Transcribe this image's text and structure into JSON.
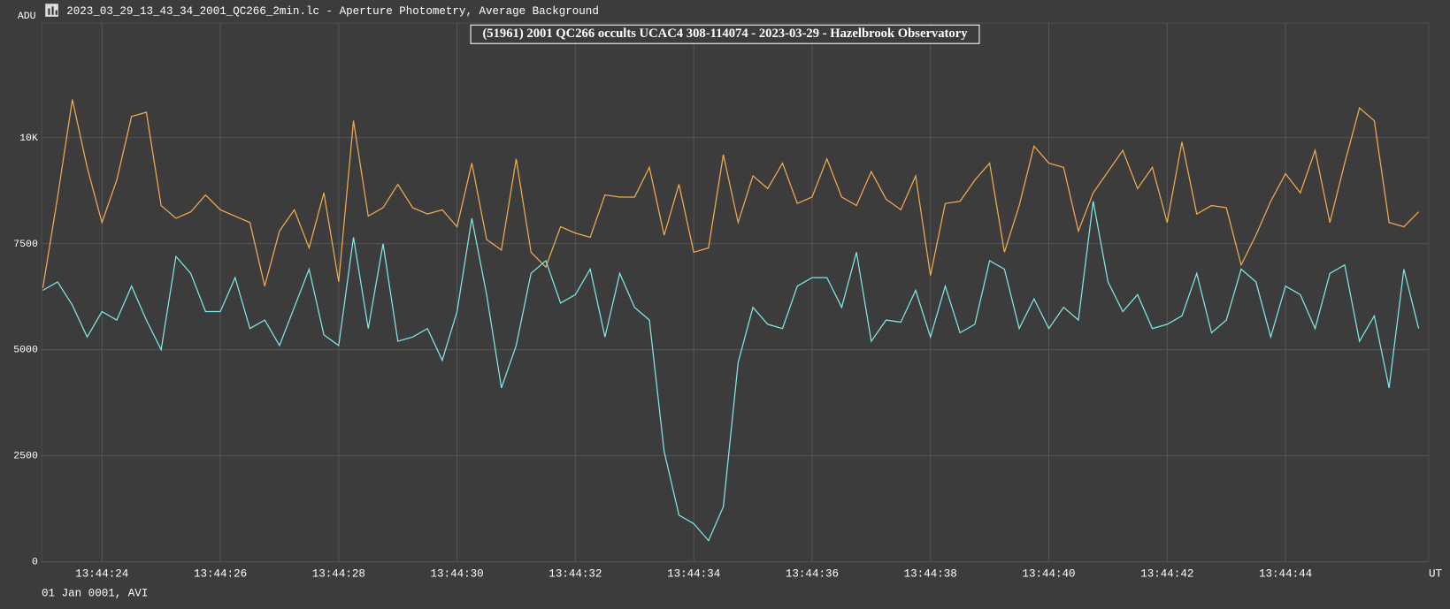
{
  "window_title": "2023_03_29_13_43_34_2001_QC266_2min.lc - Aperture Photometry, Average Background",
  "footer": "01 Jan 0001, AVI",
  "chart_data": {
    "type": "line",
    "title": "(51961) 2001 QC266 occults UCAC4 308-114074 - 2023-03-29 - Hazelbrook Observatory",
    "y_label": "ADU",
    "x_label": "UT",
    "grid": true,
    "xlim": [
      22.98,
      46.42
    ],
    "xticks": [
      {
        "value": 24,
        "label": "13:44:24"
      },
      {
        "value": 26,
        "label": "13:44:26"
      },
      {
        "value": 28,
        "label": "13:44:28"
      },
      {
        "value": 30,
        "label": "13:44:30"
      },
      {
        "value": 32,
        "label": "13:44:32"
      },
      {
        "value": 34,
        "label": "13:44:34"
      },
      {
        "value": 36,
        "label": "13:44:36"
      },
      {
        "value": 38,
        "label": "13:44:38"
      },
      {
        "value": 40,
        "label": "13:44:40"
      },
      {
        "value": 42,
        "label": "13:44:42"
      },
      {
        "value": 44,
        "label": "13:44:44"
      }
    ],
    "ylim": [
      0,
      12700
    ],
    "yticks": [
      0,
      2500,
      5000,
      7500,
      {
        "value": 10000,
        "label": "10K"
      }
    ],
    "x": [
      23,
      23.25,
      23.5,
      23.75,
      24,
      24.25,
      24.5,
      24.75,
      25,
      25.25,
      25.5,
      25.75,
      26,
      26.25,
      26.5,
      26.75,
      27,
      27.25,
      27.5,
      27.75,
      28,
      28.25,
      28.5,
      28.75,
      29,
      29.25,
      29.5,
      29.75,
      30,
      30.25,
      30.5,
      30.75,
      31,
      31.25,
      31.5,
      31.75,
      32,
      32.25,
      32.5,
      32.75,
      33,
      33.25,
      33.5,
      33.75,
      34,
      34.25,
      34.5,
      34.75,
      35,
      35.25,
      35.5,
      35.75,
      36,
      36.25,
      36.5,
      36.75,
      37,
      37.25,
      37.5,
      37.75,
      38,
      38.25,
      38.5,
      38.75,
      39,
      39.25,
      39.5,
      39.75,
      40,
      40.25,
      40.5,
      40.75,
      41,
      41.25,
      41.5,
      41.75,
      42,
      42.25,
      42.5,
      42.75,
      43,
      43.25,
      43.5,
      43.75,
      44,
      44.25,
      44.5,
      44.75,
      45,
      45.25,
      45.5,
      45.75,
      46,
      46.25
    ],
    "series": [
      {
        "color": "#f0aa50",
        "values": [
          6450,
          8600,
          10900,
          9300,
          8000,
          9000,
          10500,
          10600,
          8400,
          8100,
          8250,
          8650,
          8300,
          8150,
          8000,
          6500,
          7800,
          8300,
          7400,
          8700,
          6600,
          10400,
          8150,
          8350,
          8900,
          8350,
          8200,
          8300,
          7900,
          9400,
          7600,
          7350,
          9500,
          7300,
          6950,
          7900,
          7750,
          7650,
          8650,
          8600,
          8600,
          9300,
          7700,
          8900,
          7300,
          7400,
          9600,
          8000,
          9100,
          8800,
          9400,
          8450,
          8600,
          9500,
          8600,
          8400,
          9200,
          8550,
          8300,
          9100,
          6750,
          8450,
          8500,
          9000,
          9400,
          7300,
          8400,
          9800,
          9400,
          9300,
          7800,
          8700,
          9200,
          9700,
          8800,
          9300,
          8000,
          9900,
          8200,
          8400,
          8350,
          7000,
          7700,
          8500,
          9150,
          8700,
          9700,
          8000,
          9400,
          10700,
          10400,
          8000,
          7900,
          8250
        ]
      },
      {
        "color": "#80e6e6",
        "values": [
          6400,
          6600,
          6050,
          5300,
          5900,
          5700,
          6500,
          5700,
          5000,
          7200,
          6800,
          5900,
          5900,
          6700,
          5500,
          5700,
          5100,
          6000,
          6900,
          5350,
          5100,
          7650,
          5500,
          7500,
          5200,
          5300,
          5500,
          4750,
          5900,
          8100,
          6300,
          4100,
          5100,
          6800,
          7100,
          6100,
          6300,
          6900,
          5300,
          6800,
          6000,
          5700,
          2600,
          1100,
          900,
          500,
          1300,
          4700,
          6000,
          5600,
          5500,
          6500,
          6700,
          6700,
          6000,
          7300,
          5200,
          5700,
          5650,
          6400,
          5300,
          6500,
          5400,
          5600,
          7100,
          6900,
          5500,
          6200,
          5500,
          6000,
          5700,
          8500,
          6600,
          5900,
          6300,
          5500,
          5600,
          5800,
          6800,
          5400,
          5700,
          6900,
          6600,
          5300,
          6500,
          6300,
          5500,
          6800,
          7000,
          5200,
          5800,
          4100,
          6900,
          5500
        ]
      }
    ]
  }
}
